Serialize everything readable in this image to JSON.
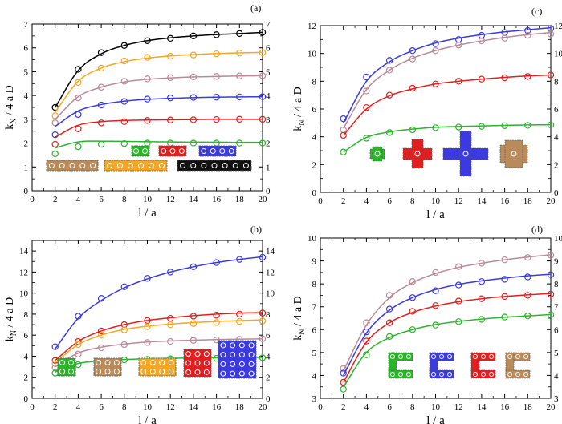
{
  "chart_data": [
    {
      "panel": "(a)",
      "type": "line",
      "xlabel": "l / a",
      "ylabel": "k_N / 4 a D",
      "xlim": [
        0,
        20
      ],
      "ylim": [
        0,
        7
      ],
      "x_ticks": [
        0,
        2,
        4,
        6,
        8,
        10,
        12,
        14,
        16,
        18,
        20
      ],
      "y_ticks": [
        0,
        1,
        2,
        3,
        4,
        5,
        6,
        7
      ],
      "x": [
        2,
        4,
        6,
        8,
        10,
        12,
        14,
        16,
        18,
        20
      ],
      "series": [
        {
          "color": "#000000",
          "markers": [
            3.5,
            5.1,
            5.8,
            6.1,
            6.3,
            6.4,
            6.5,
            6.55,
            6.6,
            6.65
          ],
          "curve": [
            3.5,
            5.05,
            5.75,
            6.1,
            6.3,
            6.42,
            6.5,
            6.56,
            6.6,
            6.65
          ]
        },
        {
          "color": "#f5a623",
          "markers": [
            3.15,
            4.55,
            5.15,
            5.45,
            5.6,
            5.65,
            5.7,
            5.75,
            5.78,
            5.8
          ],
          "curve": [
            3.3,
            4.6,
            5.15,
            5.42,
            5.57,
            5.66,
            5.72,
            5.76,
            5.79,
            5.81
          ]
        },
        {
          "color": "#b98a99",
          "markers": [
            2.85,
            3.9,
            4.35,
            4.6,
            4.7,
            4.75,
            4.78,
            4.8,
            4.82,
            4.83
          ],
          "curve": [
            3.0,
            3.95,
            4.35,
            4.57,
            4.68,
            4.74,
            4.78,
            4.8,
            4.82,
            4.83
          ]
        },
        {
          "color": "#3a3ae0",
          "markers": [
            2.35,
            3.2,
            3.6,
            3.75,
            3.85,
            3.9,
            3.92,
            3.93,
            3.94,
            3.95
          ],
          "curve": [
            2.7,
            3.35,
            3.62,
            3.76,
            3.84,
            3.88,
            3.91,
            3.93,
            3.94,
            3.95
          ]
        },
        {
          "color": "#e02020",
          "markers": [
            1.95,
            2.6,
            2.85,
            2.9,
            2.95,
            2.97,
            2.98,
            2.99,
            3.0,
            3.0
          ],
          "curve": [
            2.25,
            2.75,
            2.9,
            2.95,
            2.97,
            2.98,
            2.99,
            3.0,
            3.0,
            3.0
          ]
        },
        {
          "color": "#2ab52a",
          "markers": [
            1.55,
            1.85,
            1.95,
            1.98,
            2.0,
            2.0,
            2.0,
            2.0,
            2.0,
            2.0
          ],
          "curve": [
            1.8,
            2.05,
            2.08,
            2.07,
            2.06,
            2.05,
            2.04,
            2.04,
            2.03,
            2.03
          ]
        }
      ]
    },
    {
      "panel": "(b)",
      "type": "line",
      "xlabel": "l / a",
      "ylabel": "k_N / 4 a D",
      "xlim": [
        0,
        20
      ],
      "ylim": [
        0,
        15
      ],
      "x_ticks": [
        0,
        2,
        4,
        6,
        8,
        10,
        12,
        14,
        16,
        18,
        20
      ],
      "y_ticks": [
        0,
        2,
        4,
        6,
        8,
        10,
        12,
        14
      ],
      "x": [
        2,
        4,
        6,
        8,
        10,
        12,
        14,
        16,
        18,
        20
      ],
      "series": [
        {
          "color": "#3a3ae0",
          "markers": [
            4.9,
            7.8,
            9.5,
            10.6,
            11.4,
            12.0,
            12.5,
            12.9,
            13.2,
            13.4
          ],
          "curve": [
            4.7,
            7.6,
            9.3,
            10.5,
            11.35,
            12.0,
            12.5,
            12.9,
            13.2,
            13.45
          ]
        },
        {
          "color": "#e02020",
          "markers": [
            3.6,
            5.4,
            6.4,
            7.0,
            7.4,
            7.6,
            7.8,
            7.9,
            8.0,
            8.1
          ],
          "curve": [
            3.6,
            5.4,
            6.4,
            7.0,
            7.4,
            7.65,
            7.85,
            8.0,
            8.1,
            8.15
          ]
        },
        {
          "color": "#f5a623",
          "markers": [
            3.3,
            5.1,
            6.0,
            6.5,
            6.8,
            7.0,
            7.1,
            7.2,
            7.3,
            7.35
          ],
          "curve": [
            3.4,
            5.1,
            6.0,
            6.55,
            6.85,
            7.05,
            7.2,
            7.3,
            7.38,
            7.45
          ]
        },
        {
          "color": "#b98a99",
          "markers": [
            2.9,
            4.2,
            4.8,
            5.1,
            5.3,
            5.4,
            5.5,
            5.55,
            5.6,
            5.65
          ],
          "curve": [
            3.0,
            4.3,
            4.85,
            5.15,
            5.35,
            5.45,
            5.52,
            5.58,
            5.62,
            5.65
          ]
        },
        {
          "color": "#2ab52a",
          "markers": [
            2.4,
            3.2,
            3.5,
            3.65,
            3.7,
            3.75,
            3.8,
            3.8,
            3.82,
            3.85
          ],
          "curve": [
            2.5,
            3.3,
            3.55,
            3.68,
            3.75,
            3.8,
            3.83,
            3.85,
            3.87,
            3.88
          ]
        }
      ]
    },
    {
      "panel": "(c)",
      "type": "line",
      "xlabel": "l / a",
      "ylabel": "k_N / 4 a D",
      "xlim": [
        0,
        20
      ],
      "ylim": [
        0,
        12
      ],
      "x_ticks": [
        0,
        2,
        4,
        6,
        8,
        10,
        12,
        14,
        16,
        18,
        20
      ],
      "y_ticks": [
        0,
        2,
        4,
        6,
        8,
        10,
        12
      ],
      "x": [
        2,
        4,
        6,
        8,
        10,
        12,
        14,
        16,
        18,
        20
      ],
      "series": [
        {
          "color": "#3a3ae0",
          "markers": [
            5.3,
            8.3,
            9.5,
            10.2,
            10.7,
            11.0,
            11.3,
            11.5,
            11.65,
            11.8
          ],
          "curve": [
            5.0,
            8.0,
            9.4,
            10.2,
            10.75,
            11.1,
            11.35,
            11.55,
            11.7,
            11.85
          ]
        },
        {
          "color": "#b98a99",
          "markers": [
            4.5,
            7.3,
            8.8,
            9.6,
            10.2,
            10.6,
            10.9,
            11.1,
            11.3,
            11.4
          ],
          "curve": [
            4.6,
            7.4,
            8.8,
            9.65,
            10.2,
            10.6,
            10.9,
            11.15,
            11.35,
            11.5
          ]
        },
        {
          "color": "#e02020",
          "markers": [
            4.1,
            6.1,
            7.0,
            7.5,
            7.8,
            8.0,
            8.15,
            8.25,
            8.35,
            8.45
          ],
          "curve": [
            4.1,
            6.0,
            6.95,
            7.45,
            7.8,
            8.0,
            8.15,
            8.28,
            8.38,
            8.45
          ]
        },
        {
          "color": "#2ab52a",
          "markers": [
            2.9,
            3.9,
            4.3,
            4.5,
            4.65,
            4.7,
            4.75,
            4.8,
            4.82,
            4.85
          ],
          "curve": [
            2.9,
            3.95,
            4.35,
            4.55,
            4.68,
            4.74,
            4.78,
            4.82,
            4.85,
            4.87
          ]
        }
      ]
    },
    {
      "panel": "(d)",
      "type": "line",
      "xlabel": "l / a",
      "ylabel": "k_N / 4 a D",
      "xlim": [
        0,
        20
      ],
      "ylim": [
        3,
        10
      ],
      "x_ticks": [
        0,
        2,
        4,
        6,
        8,
        10,
        12,
        14,
        16,
        18,
        20
      ],
      "y_ticks": [
        3,
        4,
        5,
        6,
        7,
        8,
        9,
        10
      ],
      "x": [
        2,
        4,
        6,
        8,
        10,
        12,
        14,
        16,
        18,
        20
      ],
      "series": [
        {
          "color": "#b98a99",
          "markers": [
            4.3,
            6.3,
            7.5,
            8.1,
            8.5,
            8.75,
            8.9,
            9.05,
            9.15,
            9.25
          ],
          "curve": [
            4.2,
            6.2,
            7.4,
            8.05,
            8.45,
            8.72,
            8.9,
            9.05,
            9.17,
            9.27
          ]
        },
        {
          "color": "#3a3ae0",
          "markers": [
            4.1,
            5.9,
            6.9,
            7.4,
            7.7,
            7.95,
            8.1,
            8.2,
            8.3,
            8.4
          ],
          "curve": [
            4.0,
            5.85,
            6.85,
            7.4,
            7.75,
            7.98,
            8.13,
            8.25,
            8.35,
            8.42
          ]
        },
        {
          "color": "#e02020",
          "markers": [
            3.7,
            5.5,
            6.3,
            6.8,
            7.05,
            7.25,
            7.35,
            7.45,
            7.5,
            7.55
          ],
          "curve": [
            3.7,
            5.45,
            6.3,
            6.75,
            7.03,
            7.22,
            7.35,
            7.45,
            7.52,
            7.58
          ]
        },
        {
          "color": "#2ab52a",
          "markers": [
            3.4,
            4.9,
            5.7,
            6.0,
            6.2,
            6.35,
            6.45,
            6.55,
            6.6,
            6.65
          ],
          "curve": [
            3.5,
            5.0,
            5.65,
            6.0,
            6.22,
            6.36,
            6.46,
            6.54,
            6.6,
            6.66
          ]
        }
      ]
    }
  ]
}
